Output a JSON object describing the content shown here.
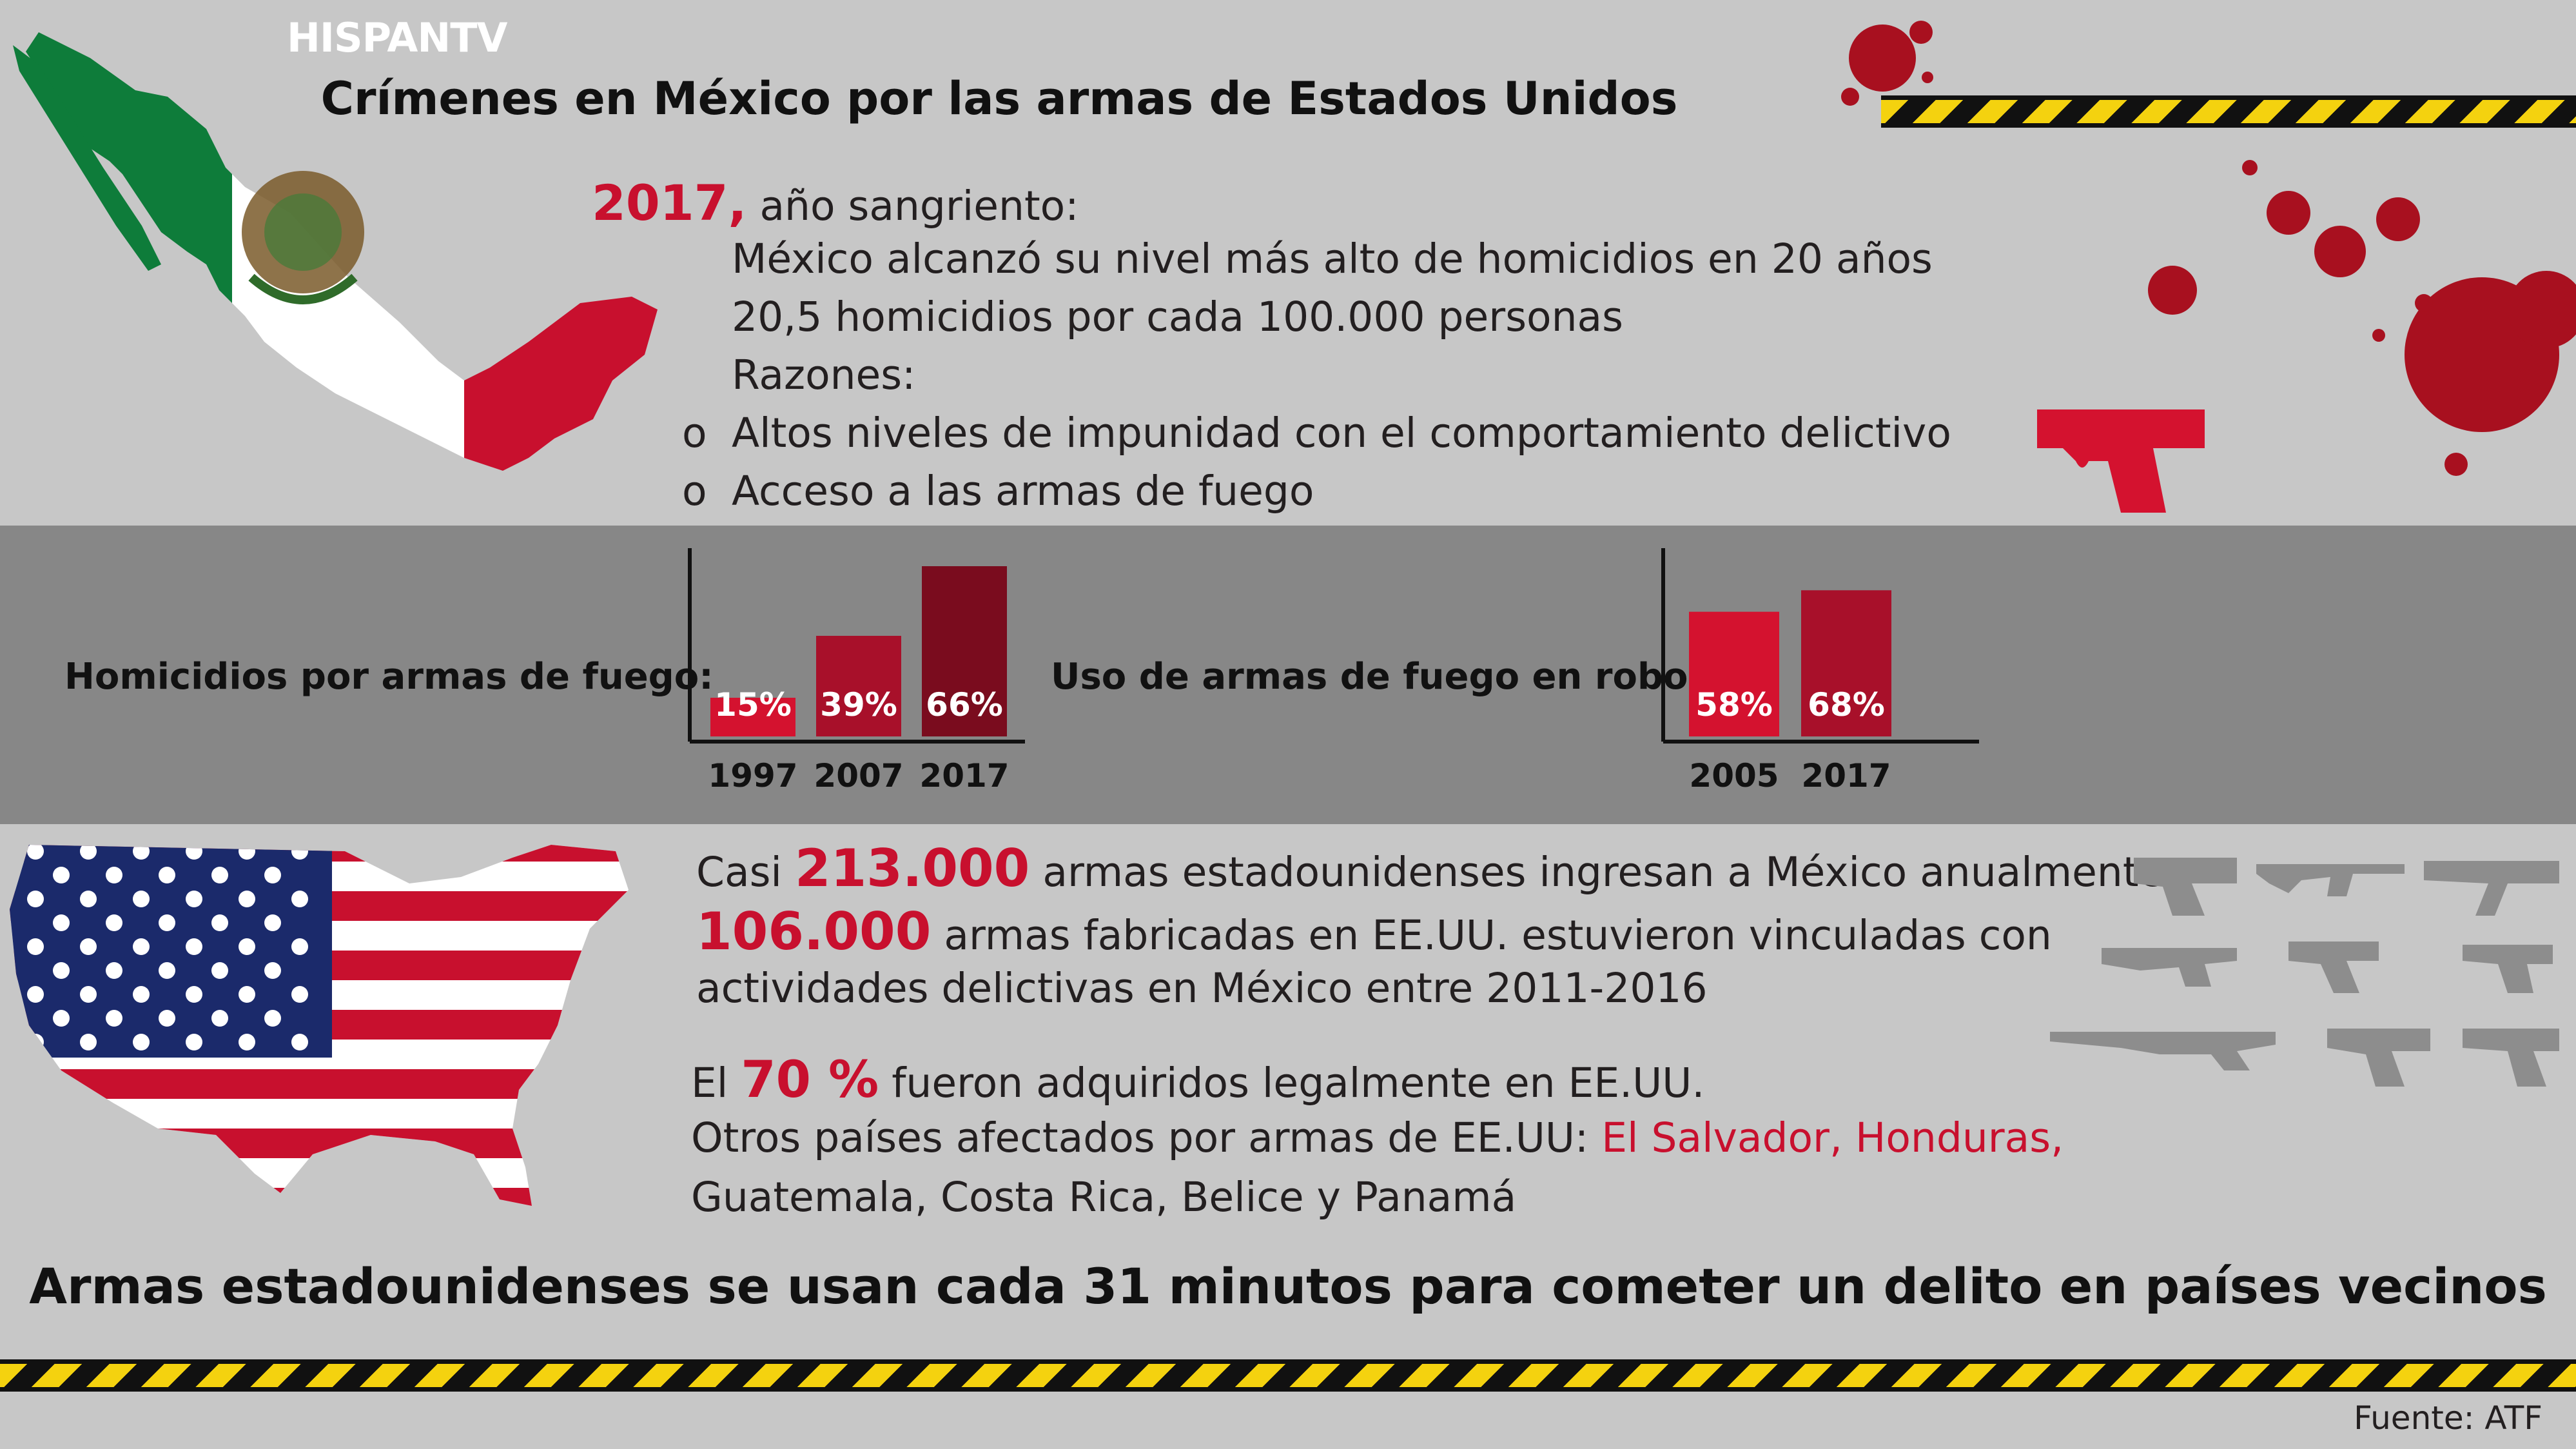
{
  "brand": "HISPANTV",
  "title": "Crímenes en México por las armas de Estados Unidos",
  "year_block": {
    "year": "2017,",
    "label": "año sangriento:",
    "lines": [
      "México alcanzó su nivel más alto de homicidios en 20 años",
      "20,5 homicidios por cada 100.000 personas",
      "Razones:"
    ],
    "bullet_glyph": "o",
    "bullets": [
      "Altos niveles de impunidad con el comportamiento delictivo",
      "Acceso a las armas de fuego"
    ]
  },
  "chart_data": [
    {
      "type": "bar",
      "title": "Homicidios por armas de fuego:",
      "categories": [
        "1997",
        "2007",
        "2017"
      ],
      "values": [
        15,
        39,
        66
      ],
      "value_labels": [
        "15%",
        "39%",
        "66%"
      ],
      "colors": [
        "#d4122f",
        "#a8102a",
        "#7a0c1e"
      ],
      "ylim": [
        0,
        75
      ]
    },
    {
      "type": "bar",
      "title": "Uso de armas de fuego en robos:",
      "categories": [
        "2005",
        "2017"
      ],
      "values": [
        58,
        68
      ],
      "value_labels": [
        "58%",
        "68%"
      ],
      "colors": [
        "#d4122f",
        "#a8102a"
      ],
      "ylim": [
        0,
        90
      ]
    }
  ],
  "us_block": {
    "line1_pre": "Casi",
    "line1_num": "213.000",
    "line1_post": "armas estadounidenses ingresan a México anualmente",
    "line2_num": "106.000",
    "line2_post": "armas fabricadas en EE.UU. estuvieron vinculadas con",
    "line3": "actividades delictivas en México entre 2011-2016",
    "line4_pre": "El",
    "line4_num": "70 %",
    "line4_post": "fueron adquiridos legalmente en EE.UU.",
    "line5_pre": "Otros países afectados por armas de EE.UU:",
    "line5_red": "El Salvador, Honduras,",
    "line6_red": "Guatemala, Costa Rica, Belice y Panamá"
  },
  "bottom_claim": "Armas estadounidenses se usan cada 31 minutos para cometer un delito en países vecinos",
  "source": "Fuente: ATF",
  "colors": {
    "background": "#c7c7c7",
    "band": "#878787",
    "accent_red": "#c8102e",
    "tape_yellow": "#f4d20f"
  },
  "icons": [
    "mexico-flag-map-icon",
    "usa-flag-map-icon",
    "blood-splatter-icon",
    "red-pistol-icon",
    "gun-silhouettes-icon"
  ]
}
